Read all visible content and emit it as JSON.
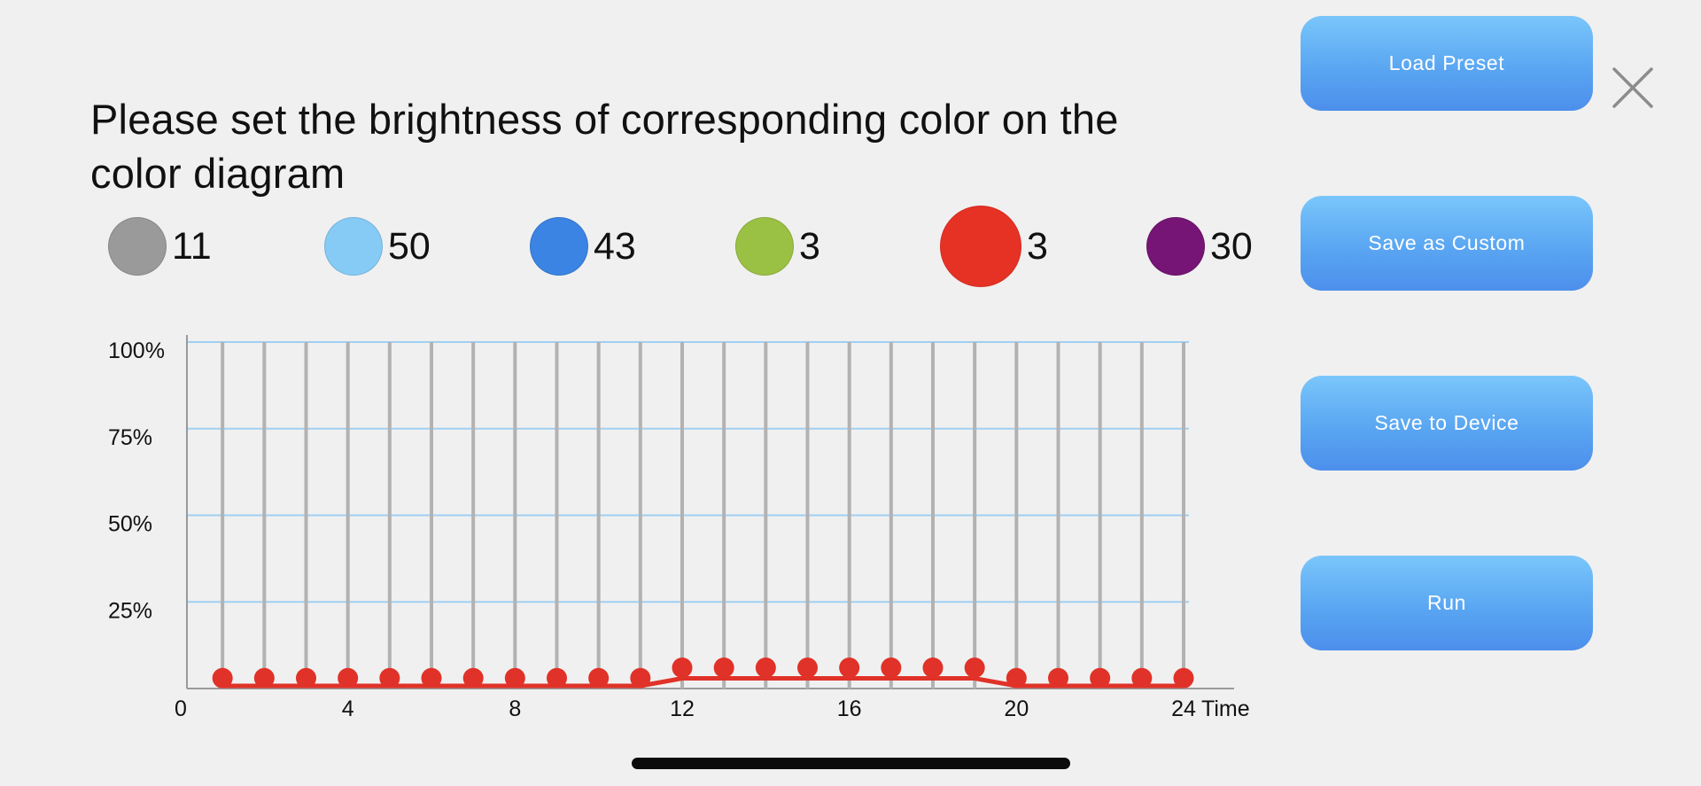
{
  "title": "Please set the brightness of corresponding color on the color diagram",
  "colors": [
    {
      "name": "white",
      "hex": "#9a9a9a",
      "value": "11"
    },
    {
      "name": "cyan",
      "hex": "#86cbf6",
      "value": "50"
    },
    {
      "name": "blue",
      "hex": "#3b84e4",
      "value": "43"
    },
    {
      "name": "green",
      "hex": "#9bc144",
      "value": "3"
    },
    {
      "name": "red",
      "hex": "#e63125",
      "value": "3",
      "selected": true
    },
    {
      "name": "purple",
      "hex": "#761575",
      "value": "30"
    }
  ],
  "buttons": {
    "load_preset": "Load Preset",
    "save_custom": "Save as Custom",
    "save_device": "Save to Device",
    "run": "Run"
  },
  "close_icon": "close-icon",
  "chart_data": {
    "type": "line",
    "xlabel": "Time",
    "ylabel": "",
    "x_ticks": [
      "0",
      "4",
      "8",
      "12",
      "16",
      "20",
      "24"
    ],
    "y_ticks": [
      "100%",
      "75%",
      "50%",
      "25%"
    ],
    "xlim": [
      0,
      24
    ],
    "ylim": [
      0,
      100
    ],
    "grid": true,
    "series": [
      {
        "color": "#e03228",
        "x": [
          1,
          2,
          3,
          4,
          5,
          6,
          7,
          8,
          9,
          10,
          11,
          12,
          13,
          14,
          15,
          16,
          17,
          18,
          19,
          20,
          21,
          22,
          23,
          24
        ],
        "values": [
          3,
          3,
          3,
          3,
          3,
          3,
          3,
          3,
          3,
          3,
          3,
          6,
          6,
          6,
          6,
          6,
          6,
          6,
          6,
          3,
          3,
          3,
          3,
          3
        ]
      }
    ]
  }
}
